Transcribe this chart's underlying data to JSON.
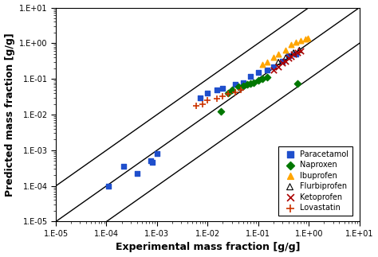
{
  "title": "",
  "xlabel": "Experimental mass fraction [g/g]",
  "ylabel": "Predicted mass fraction [g/g]",
  "background_color": "#f0f0f0",
  "paracetamol": {
    "exp": [
      0.00011,
      0.00022,
      0.0004,
      0.00075,
      0.0008,
      0.001,
      0.007,
      0.01,
      0.015,
      0.02,
      0.035,
      0.05,
      0.07,
      0.1,
      0.15,
      0.2,
      0.3,
      0.4,
      0.55
    ],
    "pred": [
      0.0001,
      0.00035,
      0.00022,
      0.0005,
      0.00045,
      0.0008,
      0.03,
      0.04,
      0.05,
      0.055,
      0.07,
      0.08,
      0.12,
      0.15,
      0.18,
      0.22,
      0.32,
      0.45,
      0.5
    ],
    "color": "#1f4fcc",
    "marker": "s",
    "label": "Paracetamol",
    "size": 18
  },
  "naproxen": {
    "exp": [
      0.018,
      0.025,
      0.03,
      0.04,
      0.05,
      0.06,
      0.07,
      0.08,
      0.1,
      0.12,
      0.15,
      0.6
    ],
    "pred": [
      0.012,
      0.04,
      0.05,
      0.06,
      0.065,
      0.07,
      0.075,
      0.08,
      0.09,
      0.1,
      0.11,
      0.075
    ],
    "color": "#007700",
    "marker": "D",
    "label": "Naproxen",
    "size": 18
  },
  "ibuprofen": {
    "exp": [
      0.12,
      0.15,
      0.2,
      0.25,
      0.35,
      0.45,
      0.55,
      0.7,
      0.85,
      0.95
    ],
    "pred": [
      0.25,
      0.3,
      0.4,
      0.5,
      0.65,
      0.9,
      1.1,
      1.2,
      1.3,
      1.4
    ],
    "color": "#FFA500",
    "marker": "^",
    "label": "Ibuprofen",
    "size": 22
  },
  "flurbiprofen": {
    "exp": [
      0.25,
      0.35,
      0.5,
      0.65
    ],
    "pred": [
      0.3,
      0.4,
      0.55,
      0.65
    ],
    "color": "#000000",
    "marker": "^",
    "label": "Flurbiprofen",
    "size": 22
  },
  "ketoprofen": {
    "exp": [
      0.2,
      0.25,
      0.3,
      0.35,
      0.4,
      0.45,
      0.5,
      0.6,
      0.7
    ],
    "pred": [
      0.18,
      0.22,
      0.28,
      0.32,
      0.38,
      0.42,
      0.5,
      0.55,
      0.6
    ],
    "color": "#AA0000",
    "marker": "x",
    "label": "Ketoprofen",
    "size": 28
  },
  "lovastatin": {
    "exp": [
      0.006,
      0.008,
      0.01,
      0.015,
      0.02,
      0.025,
      0.035,
      0.045
    ],
    "pred": [
      0.018,
      0.02,
      0.025,
      0.028,
      0.032,
      0.038,
      0.042,
      0.05
    ],
    "color": "#CC3300",
    "marker": "+",
    "label": "Lovastatin",
    "size": 32
  }
}
